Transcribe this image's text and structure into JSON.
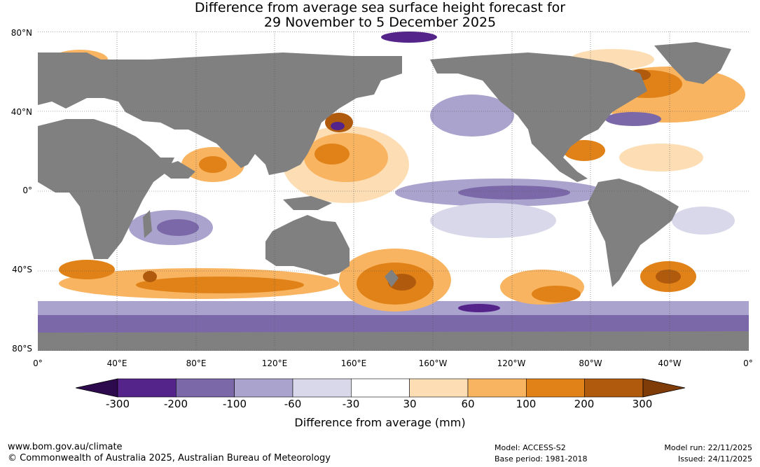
{
  "title": {
    "line1": "Difference from average sea surface height forecast for",
    "line2": "29 November to 5 December 2025"
  },
  "axes": {
    "lat_labels": [
      "80°N",
      "40°N",
      "0°",
      "40°S",
      "80°S"
    ],
    "lon_labels": [
      "0°",
      "40°E",
      "80°E",
      "120°E",
      "160°E",
      "160°W",
      "120°W",
      "80°W",
      "40°W",
      "0°"
    ]
  },
  "colorbar": {
    "ticks": [
      "-300",
      "-200",
      "-100",
      "-60",
      "-30",
      "30",
      "60",
      "100",
      "200",
      "300"
    ],
    "label": "Difference from average (mm)",
    "colors": [
      "#2d0a4e",
      "#54248a",
      "#7b68a8",
      "#aaa3ce",
      "#d8d8ea",
      "#ffffff",
      "#fddeb4",
      "#f8b460",
      "#e08217",
      "#b05a0d",
      "#7f3b08"
    ]
  },
  "map_colors": {
    "land": "#808080",
    "ocean_neutral": "#ffffff",
    "grid": "#555555"
  },
  "footer": {
    "website": "www.bom.gov.au/climate",
    "copyright": "© Commonwealth of Australia 2025, Australian Bureau of Meteorology",
    "model": "Model: ACCESS-S2",
    "base_period": "Base period: 1981-2018",
    "model_run": "Model run: 22/11/2025",
    "issued": "Issued: 24/11/2025"
  }
}
